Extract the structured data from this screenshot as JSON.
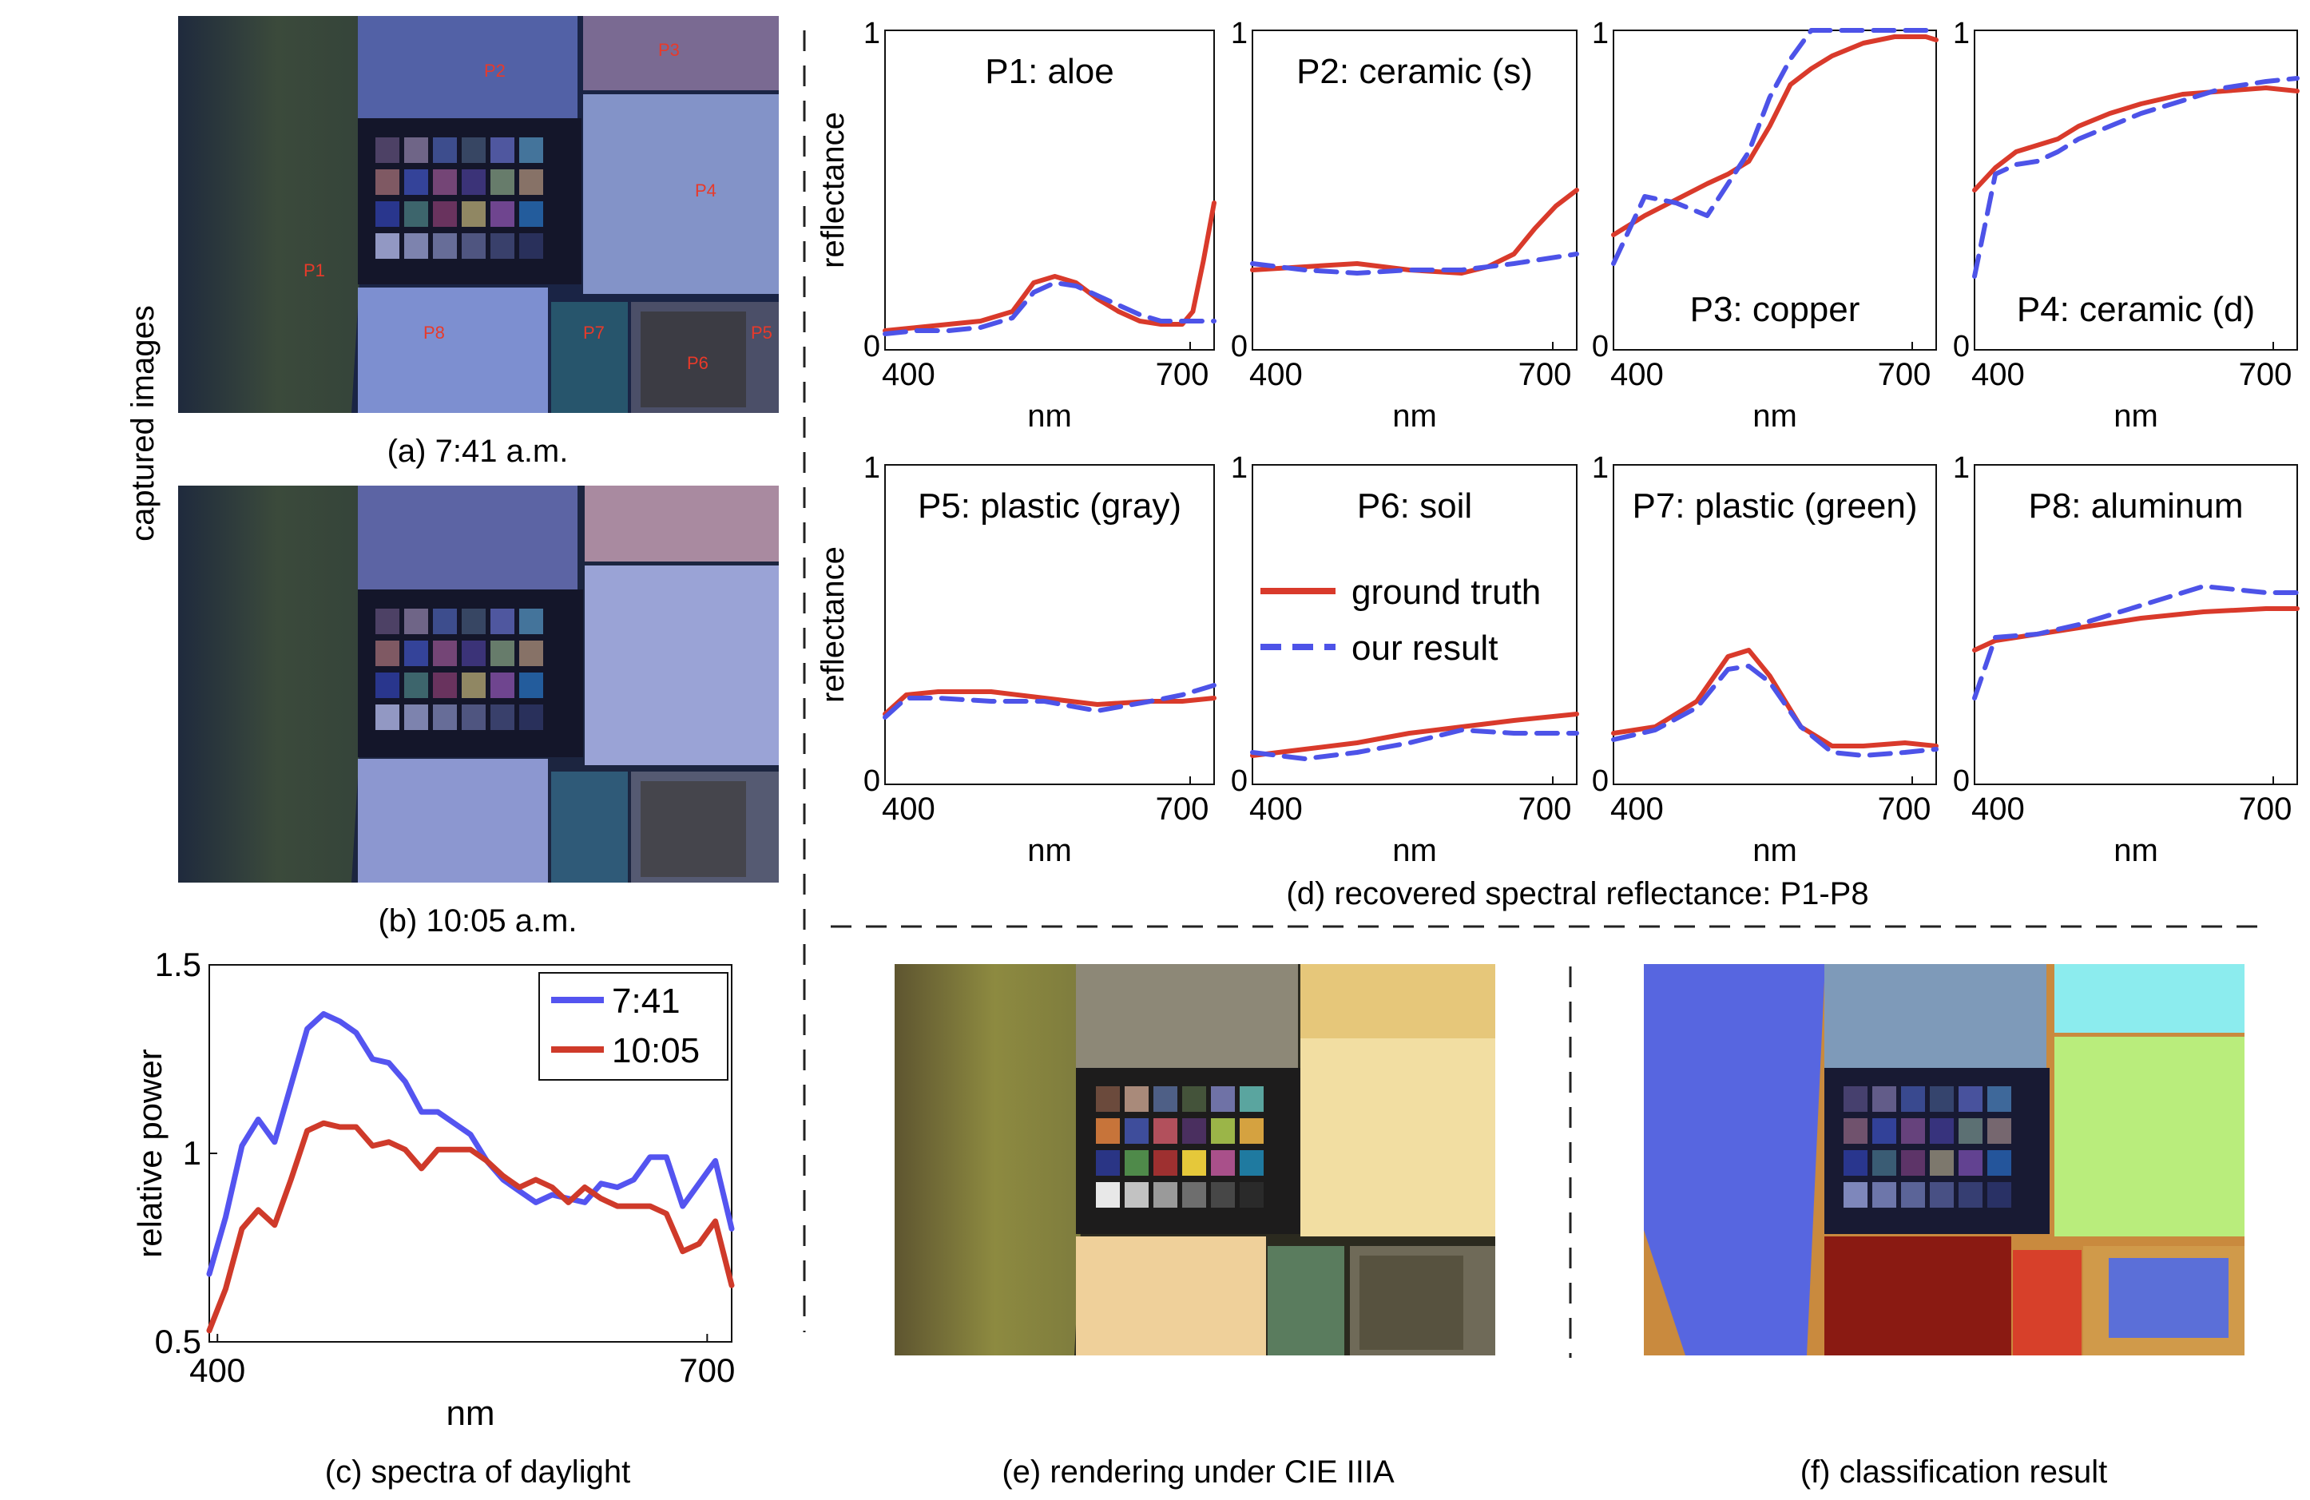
{
  "captured_images_label": "captured images",
  "captions": {
    "a": "(a) 7:41 a.m.",
    "b": "(b) 10:05 a.m.",
    "c": "(c) spectra of daylight",
    "d": "(d) recovered spectral reflectance: P1-P8",
    "e": "(e) rendering under CIE IIIA",
    "f": "(f) classification result"
  },
  "photo_labels": [
    "P1",
    "P2",
    "P3",
    "P4",
    "P5",
    "P6",
    "P7",
    "P8"
  ],
  "colors": {
    "ground_truth": "#d93a2b",
    "our_result": "#4d53e8",
    "dl_741": "#5454f0",
    "dl_1005": "#cf3a2a",
    "photo_label": "#e83a2a"
  },
  "chart_data": [
    {
      "type": "line",
      "id": "daylight",
      "xlabel": "nm",
      "ylabel": "relative power",
      "xlim": [
        395,
        715
      ],
      "ylim": [
        0.5,
        1.5
      ],
      "xticks": [
        400,
        700
      ],
      "yticks": [
        0.5,
        1,
        1.5
      ],
      "ytick_labels": [
        "0.5",
        "1",
        "1.5"
      ],
      "legend": "top-right",
      "x": [
        395,
        405,
        415,
        425,
        435,
        445,
        455,
        465,
        475,
        485,
        495,
        505,
        515,
        525,
        535,
        545,
        555,
        565,
        575,
        585,
        595,
        605,
        615,
        625,
        635,
        645,
        655,
        665,
        675,
        685,
        695,
        705,
        715
      ],
      "series": [
        {
          "name": "7:41",
          "color": "#5454f0",
          "values": [
            0.68,
            0.83,
            1.02,
            1.09,
            1.03,
            1.18,
            1.33,
            1.37,
            1.35,
            1.32,
            1.25,
            1.24,
            1.19,
            1.11,
            1.11,
            1.08,
            1.05,
            0.98,
            0.93,
            0.9,
            0.87,
            0.89,
            0.88,
            0.87,
            0.92,
            0.91,
            0.93,
            0.99,
            0.99,
            0.86,
            0.92,
            0.98,
            0.8
          ]
        },
        {
          "name": "10:05",
          "color": "#cf3a2a",
          "values": [
            0.53,
            0.64,
            0.8,
            0.85,
            0.81,
            0.93,
            1.06,
            1.08,
            1.07,
            1.07,
            1.02,
            1.03,
            1.01,
            0.96,
            1.01,
            1.01,
            1.01,
            0.98,
            0.94,
            0.91,
            0.93,
            0.91,
            0.87,
            0.91,
            0.88,
            0.86,
            0.86,
            0.86,
            0.84,
            0.74,
            0.76,
            0.82,
            0.65
          ]
        }
      ]
    },
    {
      "type": "line",
      "id": "P1",
      "title": "P1: aloe",
      "xlabel": "nm",
      "ylabel": "reflectance",
      "xlim": [
        400,
        710
      ],
      "ylim": [
        0,
        1
      ],
      "x": [
        400,
        430,
        460,
        490,
        520,
        540,
        560,
        580,
        600,
        620,
        640,
        660,
        680,
        690,
        700,
        710
      ],
      "series": [
        {
          "name": "ground truth",
          "values": [
            0.06,
            0.07,
            0.08,
            0.09,
            0.12,
            0.21,
            0.23,
            0.21,
            0.16,
            0.12,
            0.09,
            0.08,
            0.08,
            0.12,
            0.28,
            0.46
          ]
        },
        {
          "name": "our result",
          "values": [
            0.05,
            0.06,
            0.06,
            0.07,
            0.1,
            0.18,
            0.21,
            0.2,
            0.17,
            0.14,
            0.11,
            0.09,
            0.09,
            0.09,
            0.09,
            0.09
          ]
        }
      ]
    },
    {
      "type": "line",
      "id": "P2",
      "title": "P2: ceramic (s)",
      "xlabel": "nm",
      "xlim": [
        400,
        710
      ],
      "ylim": [
        0,
        1
      ],
      "x": [
        400,
        450,
        500,
        550,
        600,
        625,
        650,
        670,
        690,
        710
      ],
      "series": [
        {
          "name": "ground truth",
          "values": [
            0.25,
            0.26,
            0.27,
            0.25,
            0.24,
            0.26,
            0.3,
            0.38,
            0.45,
            0.5
          ]
        },
        {
          "name": "our result",
          "values": [
            0.27,
            0.25,
            0.24,
            0.25,
            0.25,
            0.26,
            0.27,
            0.28,
            0.29,
            0.3
          ]
        }
      ]
    },
    {
      "type": "line",
      "id": "P3",
      "title": "P3: copper",
      "xlabel": "nm",
      "xlim": [
        400,
        710
      ],
      "ylim": [
        0,
        1
      ],
      "x": [
        400,
        430,
        460,
        490,
        510,
        530,
        550,
        570,
        590,
        610,
        640,
        670,
        700,
        710
      ],
      "series": [
        {
          "name": "ground truth",
          "values": [
            0.36,
            0.42,
            0.47,
            0.52,
            0.55,
            0.59,
            0.7,
            0.83,
            0.88,
            0.92,
            0.96,
            0.98,
            0.98,
            0.97
          ]
        },
        {
          "name": "our result",
          "values": [
            0.27,
            0.48,
            0.46,
            0.42,
            0.52,
            0.62,
            0.79,
            0.91,
            1.0,
            1.0,
            1.0,
            1.0,
            1.0,
            1.0
          ]
        }
      ]
    },
    {
      "type": "line",
      "id": "P4",
      "title": "P4: ceramic (d)",
      "xlabel": "nm",
      "xlim": [
        400,
        710
      ],
      "ylim": [
        0,
        1
      ],
      "x": [
        400,
        420,
        440,
        460,
        480,
        500,
        530,
        560,
        600,
        640,
        680,
        710
      ],
      "series": [
        {
          "name": "ground truth",
          "values": [
            0.5,
            0.57,
            0.62,
            0.64,
            0.66,
            0.7,
            0.74,
            0.77,
            0.8,
            0.81,
            0.82,
            0.81
          ]
        },
        {
          "name": "our result",
          "values": [
            0.23,
            0.55,
            0.58,
            0.59,
            0.62,
            0.66,
            0.7,
            0.74,
            0.78,
            0.82,
            0.84,
            0.85
          ]
        }
      ]
    },
    {
      "type": "line",
      "id": "P5",
      "title": "P5: plastic (gray)",
      "xlabel": "nm",
      "ylabel": "reflectance",
      "xlim": [
        400,
        710
      ],
      "ylim": [
        0,
        1
      ],
      "x": [
        400,
        420,
        450,
        500,
        550,
        600,
        650,
        680,
        710
      ],
      "series": [
        {
          "name": "ground truth",
          "values": [
            0.22,
            0.28,
            0.29,
            0.29,
            0.27,
            0.25,
            0.26,
            0.26,
            0.27
          ]
        },
        {
          "name": "our result",
          "values": [
            0.21,
            0.27,
            0.27,
            0.26,
            0.26,
            0.23,
            0.26,
            0.28,
            0.31
          ]
        }
      ]
    },
    {
      "type": "line",
      "id": "P6",
      "title": "P6: soil",
      "xlabel": "nm",
      "xlim": [
        400,
        710
      ],
      "ylim": [
        0,
        1
      ],
      "x": [
        400,
        450,
        500,
        550,
        600,
        650,
        710
      ],
      "series": [
        {
          "name": "ground truth",
          "values": [
            0.09,
            0.11,
            0.13,
            0.16,
            0.18,
            0.2,
            0.22
          ]
        },
        {
          "name": "our result",
          "values": [
            0.1,
            0.08,
            0.1,
            0.13,
            0.17,
            0.16,
            0.16
          ]
        }
      ]
    },
    {
      "type": "line",
      "id": "P7",
      "title": "P7: plastic (green)",
      "xlabel": "nm",
      "xlim": [
        400,
        710
      ],
      "ylim": [
        0,
        1
      ],
      "x": [
        400,
        440,
        480,
        510,
        530,
        550,
        580,
        610,
        640,
        680,
        710
      ],
      "series": [
        {
          "name": "ground truth",
          "values": [
            0.16,
            0.18,
            0.26,
            0.4,
            0.42,
            0.34,
            0.18,
            0.12,
            0.12,
            0.13,
            0.12
          ]
        },
        {
          "name": "our result",
          "values": [
            0.14,
            0.17,
            0.24,
            0.36,
            0.37,
            0.32,
            0.18,
            0.1,
            0.09,
            0.1,
            0.11
          ]
        }
      ]
    },
    {
      "type": "line",
      "id": "P8",
      "title": "P8: aluminum",
      "xlabel": "nm",
      "xlim": [
        400,
        710
      ],
      "ylim": [
        0,
        1
      ],
      "x": [
        400,
        420,
        460,
        500,
        560,
        620,
        680,
        710
      ],
      "series": [
        {
          "name": "ground truth",
          "values": [
            0.42,
            0.45,
            0.47,
            0.49,
            0.52,
            0.54,
            0.55,
            0.55
          ]
        },
        {
          "name": "our result",
          "values": [
            0.27,
            0.46,
            0.47,
            0.5,
            0.56,
            0.62,
            0.6,
            0.6
          ]
        }
      ]
    }
  ],
  "panel_legend": [
    "ground truth",
    "our result"
  ],
  "panel_tick_labels": {
    "x": [
      "400",
      "700"
    ],
    "y": [
      "0",
      "1"
    ]
  }
}
